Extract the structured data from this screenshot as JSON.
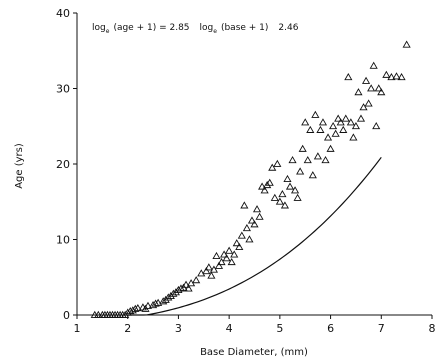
{
  "chart_data": {
    "type": "scatter",
    "xlabel": "Base Diameter, (mm)",
    "ylabel": "Age (yrs)",
    "xlim": [
      1,
      8
    ],
    "ylim": [
      0,
      40
    ],
    "x_ticks": [
      "1",
      "2",
      "3",
      "4",
      "5",
      "6",
      "7",
      "8"
    ],
    "y_ticks": [
      "0",
      "10",
      "20",
      "30",
      "40"
    ],
    "annotation": {
      "log1": "log",
      "sub1": "e",
      "expr1": "(age + 1) = 2.85",
      "log2": "log",
      "sub2": "e",
      "expr2": "(base + 1)",
      "coef": "2.46"
    },
    "marker": "open-triangle",
    "points": [
      [
        1.35,
        0
      ],
      [
        1.42,
        0
      ],
      [
        1.5,
        0
      ],
      [
        1.55,
        0
      ],
      [
        1.6,
        0
      ],
      [
        1.65,
        0
      ],
      [
        1.7,
        0
      ],
      [
        1.75,
        0
      ],
      [
        1.8,
        0
      ],
      [
        1.85,
        0
      ],
      [
        1.9,
        0
      ],
      [
        1.95,
        0
      ],
      [
        2.0,
        0.3
      ],
      [
        2.05,
        0.5
      ],
      [
        2.1,
        0.6
      ],
      [
        2.15,
        0.8
      ],
      [
        2.2,
        0.9
      ],
      [
        2.3,
        1.0
      ],
      [
        2.35,
        0.8
      ],
      [
        2.4,
        1.2
      ],
      [
        2.5,
        1.3
      ],
      [
        2.55,
        1.5
      ],
      [
        2.6,
        1.6
      ],
      [
        2.7,
        1.8
      ],
      [
        2.75,
        2.0
      ],
      [
        2.8,
        2.3
      ],
      [
        2.85,
        2.5
      ],
      [
        2.9,
        2.8
      ],
      [
        2.95,
        3.0
      ],
      [
        3.0,
        3.3
      ],
      [
        3.05,
        3.5
      ],
      [
        3.1,
        3.6
      ],
      [
        3.15,
        4.0
      ],
      [
        3.2,
        3.5
      ],
      [
        3.25,
        4.2
      ],
      [
        3.35,
        4.6
      ],
      [
        3.45,
        5.5
      ],
      [
        3.55,
        5.8
      ],
      [
        3.6,
        6.3
      ],
      [
        3.65,
        5.2
      ],
      [
        3.7,
        6.0
      ],
      [
        3.75,
        7.8
      ],
      [
        3.8,
        6.5
      ],
      [
        3.85,
        7.0
      ],
      [
        3.9,
        8.0
      ],
      [
        3.95,
        7.5
      ],
      [
        4.0,
        8.5
      ],
      [
        4.05,
        7.0
      ],
      [
        4.1,
        8.0
      ],
      [
        4.15,
        9.5
      ],
      [
        4.2,
        9.0
      ],
      [
        4.25,
        10.5
      ],
      [
        4.3,
        14.5
      ],
      [
        4.35,
        11.5
      ],
      [
        4.4,
        10.0
      ],
      [
        4.45,
        12.5
      ],
      [
        4.5,
        12.0
      ],
      [
        4.55,
        14.0
      ],
      [
        4.6,
        13.0
      ],
      [
        4.65,
        17.0
      ],
      [
        4.7,
        16.5
      ],
      [
        4.75,
        17.2
      ],
      [
        4.8,
        17.5
      ],
      [
        4.85,
        19.5
      ],
      [
        4.9,
        15.5
      ],
      [
        4.95,
        20.0
      ],
      [
        5.0,
        15.0
      ],
      [
        5.05,
        16.0
      ],
      [
        5.1,
        14.5
      ],
      [
        5.15,
        18.0
      ],
      [
        5.2,
        17.0
      ],
      [
        5.25,
        20.5
      ],
      [
        5.3,
        16.5
      ],
      [
        5.35,
        15.5
      ],
      [
        5.4,
        19.0
      ],
      [
        5.45,
        22.0
      ],
      [
        5.5,
        25.5
      ],
      [
        5.55,
        20.5
      ],
      [
        5.6,
        24.5
      ],
      [
        5.65,
        18.5
      ],
      [
        5.7,
        26.5
      ],
      [
        5.75,
        21.0
      ],
      [
        5.8,
        24.5
      ],
      [
        5.85,
        25.5
      ],
      [
        5.9,
        20.5
      ],
      [
        5.95,
        23.5
      ],
      [
        6.0,
        22.0
      ],
      [
        6.05,
        25.0
      ],
      [
        6.1,
        24.0
      ],
      [
        6.15,
        26.0
      ],
      [
        6.2,
        25.5
      ],
      [
        6.25,
        24.5
      ],
      [
        6.3,
        26.0
      ],
      [
        6.35,
        31.5
      ],
      [
        6.4,
        25.5
      ],
      [
        6.45,
        23.5
      ],
      [
        6.5,
        25.0
      ],
      [
        6.55,
        29.5
      ],
      [
        6.6,
        26.0
      ],
      [
        6.65,
        27.5
      ],
      [
        6.7,
        31.0
      ],
      [
        6.75,
        28.0
      ],
      [
        6.8,
        30.0
      ],
      [
        6.85,
        33.0
      ],
      [
        6.9,
        25.0
      ],
      [
        6.95,
        30.0
      ],
      [
        7.0,
        29.5
      ],
      [
        7.1,
        31.8
      ],
      [
        7.2,
        31.5
      ],
      [
        7.3,
        31.6
      ],
      [
        7.4,
        31.5
      ],
      [
        7.5,
        35.8
      ]
    ]
  }
}
